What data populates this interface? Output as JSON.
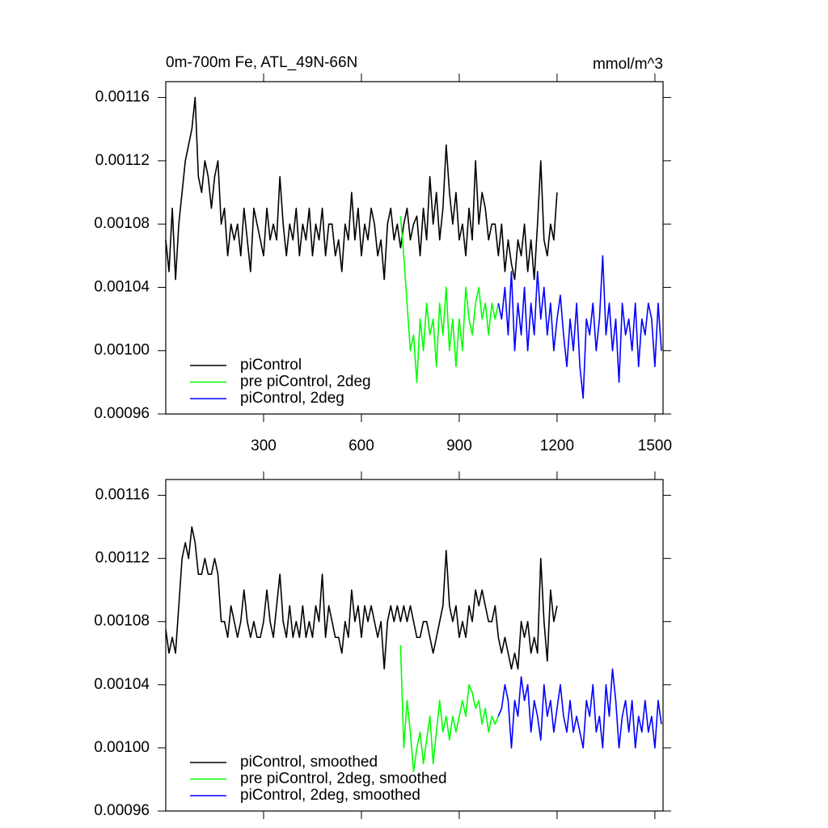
{
  "chart_data": [
    {
      "type": "line",
      "title": "0m-700m Fe, ATL_49N-66N",
      "units": "mmol/m^3",
      "xlim": [
        0,
        1525
      ],
      "xticks": [
        300,
        600,
        900,
        1200,
        1500
      ],
      "ylim": [
        0.00096,
        0.00117
      ],
      "yticks": [
        0.00096,
        {
          "value": 0.001,
          "label": "0.00100"
        },
        0.00104,
        0.00108,
        0.00112,
        0.00116
      ],
      "legend": "lower left",
      "series": [
        {
          "name": "piControl",
          "color": "#000000",
          "x": [
            0,
            10,
            20,
            30,
            40,
            50,
            60,
            70,
            80,
            90,
            100,
            110,
            120,
            130,
            140,
            150,
            160,
            170,
            180,
            190,
            200,
            210,
            220,
            230,
            240,
            250,
            260,
            270,
            280,
            290,
            300,
            310,
            320,
            330,
            340,
            350,
            360,
            370,
            380,
            390,
            400,
            410,
            420,
            430,
            440,
            450,
            460,
            470,
            480,
            490,
            500,
            510,
            520,
            530,
            540,
            550,
            560,
            570,
            580,
            590,
            600,
            610,
            620,
            630,
            640,
            650,
            660,
            670,
            680,
            690,
            700,
            710,
            720,
            730,
            740,
            750,
            760,
            770,
            780,
            790,
            800,
            810,
            820,
            830,
            840,
            850,
            860,
            870,
            880,
            890,
            900,
            910,
            920,
            930,
            940,
            950,
            960,
            970,
            980,
            990,
            1000,
            1010,
            1020,
            1030,
            1040,
            1050,
            1060,
            1070,
            1080,
            1090,
            1100,
            1110,
            1120,
            1130,
            1140,
            1150,
            1160,
            1170,
            1180,
            1190,
            1200
          ],
          "values": [
            0.00107,
            0.00105,
            0.00109,
            0.001045,
            0.00108,
            0.0011,
            0.00112,
            0.00113,
            0.00114,
            0.00116,
            0.00111,
            0.0011,
            0.00112,
            0.00111,
            0.00109,
            0.00111,
            0.00112,
            0.00108,
            0.00109,
            0.00106,
            0.00108,
            0.00107,
            0.00108,
            0.00106,
            0.00109,
            0.00107,
            0.00105,
            0.00109,
            0.00108,
            0.00107,
            0.00106,
            0.00109,
            0.00107,
            0.00108,
            0.00107,
            0.00111,
            0.00108,
            0.00106,
            0.00108,
            0.00107,
            0.00109,
            0.00106,
            0.00108,
            0.00107,
            0.00109,
            0.00106,
            0.00108,
            0.00107,
            0.00109,
            0.00106,
            0.00108,
            0.00108,
            0.00106,
            0.00107,
            0.00105,
            0.00108,
            0.00107,
            0.0011,
            0.00107,
            0.00109,
            0.00106,
            0.00108,
            0.00107,
            0.00109,
            0.00108,
            0.00106,
            0.00107,
            0.001045,
            0.00108,
            0.00109,
            0.00107,
            0.00108,
            0.001065,
            0.00108,
            0.00109,
            0.00107,
            0.00108,
            0.001085,
            0.00106,
            0.00109,
            0.00107,
            0.00111,
            0.00108,
            0.0011,
            0.00107,
            0.00109,
            0.00113,
            0.0011,
            0.00108,
            0.0011,
            0.00107,
            0.00108,
            0.00106,
            0.00109,
            0.00107,
            0.00112,
            0.00108,
            0.0011,
            0.00109,
            0.00107,
            0.00108,
            0.00108,
            0.00106,
            0.00108,
            0.00105,
            0.00107,
            0.001055,
            0.001045,
            0.00107,
            0.00106,
            0.00108,
            0.00105,
            0.00107,
            0.001045,
            0.00108,
            0.00112,
            0.00107,
            0.00106,
            0.00108,
            0.00107,
            0.0011
          ]
        },
        {
          "name": "pre piControl, 2deg",
          "color": "#00ff00",
          "x": [
            720,
            730,
            740,
            750,
            760,
            770,
            780,
            790,
            800,
            810,
            820,
            830,
            840,
            850,
            860,
            870,
            880,
            890,
            900,
            910,
            920,
            930,
            940,
            950,
            960,
            970,
            980,
            990,
            1000,
            1010,
            1020
          ],
          "values": [
            0.001085,
            0.00106,
            0.00103,
            0.001,
            0.00101,
            0.00098,
            0.00102,
            0.001,
            0.00103,
            0.00101,
            0.00102,
            0.00099,
            0.00103,
            0.00101,
            0.00104,
            0.001,
            0.00102,
            0.00099,
            0.00102,
            0.001,
            0.00104,
            0.00102,
            0.00101,
            0.00103,
            0.00104,
            0.00102,
            0.00103,
            0.00101,
            0.00103,
            0.00102,
            0.00103
          ]
        },
        {
          "name": "piControl, 2deg",
          "color": "#0000ff",
          "x": [
            1020,
            1030,
            1040,
            1050,
            1060,
            1070,
            1080,
            1090,
            1100,
            1110,
            1120,
            1130,
            1140,
            1150,
            1160,
            1170,
            1180,
            1190,
            1200,
            1210,
            1220,
            1230,
            1240,
            1250,
            1260,
            1270,
            1280,
            1290,
            1300,
            1310,
            1320,
            1330,
            1340,
            1350,
            1360,
            1370,
            1380,
            1390,
            1400,
            1410,
            1420,
            1430,
            1440,
            1450,
            1460,
            1470,
            1480,
            1490,
            1500,
            1510,
            1520
          ],
          "values": [
            0.00103,
            0.00102,
            0.00104,
            0.00101,
            0.00105,
            0.001,
            0.00103,
            0.00101,
            0.00104,
            0.001,
            0.00103,
            0.00101,
            0.00105,
            0.00102,
            0.00104,
            0.00101,
            0.00103,
            0.001,
            0.00102,
            0.001035,
            0.00101,
            0.00099,
            0.00102,
            0.001,
            0.00103,
            0.00099,
            0.00097,
            0.00102,
            0.00101,
            0.00103,
            0.001,
            0.00102,
            0.00106,
            0.00101,
            0.00103,
            0.001,
            0.00102,
            0.00098,
            0.00103,
            0.00101,
            0.00102,
            0.001,
            0.00103,
            0.00099,
            0.00102,
            0.00101,
            0.00103,
            0.00102,
            0.00099,
            0.00103,
            0.001
          ]
        }
      ]
    },
    {
      "type": "line",
      "xlim": [
        0,
        1525
      ],
      "xticks": [
        300,
        600,
        900,
        1200,
        1500
      ],
      "ylim": [
        0.00096,
        0.00117
      ],
      "yticks": [
        0.00096,
        {
          "value": 0.001,
          "label": "0.00100"
        },
        0.00104,
        0.00108,
        0.00112,
        0.00116
      ],
      "legend": "lower left",
      "series": [
        {
          "name": "piControl, smoothed",
          "color": "#000000",
          "x": [
            0,
            10,
            20,
            30,
            40,
            50,
            60,
            70,
            80,
            90,
            100,
            110,
            120,
            130,
            140,
            150,
            160,
            170,
            180,
            190,
            200,
            210,
            220,
            230,
            240,
            250,
            260,
            270,
            280,
            290,
            300,
            310,
            320,
            330,
            340,
            350,
            360,
            370,
            380,
            390,
            400,
            410,
            420,
            430,
            440,
            450,
            460,
            470,
            480,
            490,
            500,
            510,
            520,
            530,
            540,
            550,
            560,
            570,
            580,
            590,
            600,
            610,
            620,
            630,
            640,
            650,
            660,
            670,
            680,
            690,
            700,
            710,
            720,
            730,
            740,
            750,
            760,
            770,
            780,
            790,
            800,
            810,
            820,
            830,
            840,
            850,
            860,
            870,
            880,
            890,
            900,
            910,
            920,
            930,
            940,
            950,
            960,
            970,
            980,
            990,
            1000,
            1010,
            1020,
            1030,
            1040,
            1050,
            1060,
            1070,
            1080,
            1090,
            1100,
            1110,
            1120,
            1130,
            1140,
            1150,
            1160,
            1170,
            1180,
            1190,
            1200
          ],
          "values": [
            0.001075,
            0.00106,
            0.00107,
            0.00106,
            0.00109,
            0.00112,
            0.00113,
            0.00112,
            0.00114,
            0.00113,
            0.00111,
            0.00111,
            0.00112,
            0.00111,
            0.00111,
            0.00112,
            0.00111,
            0.00108,
            0.00108,
            0.00107,
            0.00109,
            0.00108,
            0.00107,
            0.00108,
            0.0011,
            0.00108,
            0.00107,
            0.00108,
            0.00107,
            0.00107,
            0.00108,
            0.0011,
            0.00108,
            0.00107,
            0.00109,
            0.00111,
            0.00108,
            0.00107,
            0.00109,
            0.00107,
            0.00108,
            0.00107,
            0.00109,
            0.00107,
            0.00108,
            0.00107,
            0.00109,
            0.00108,
            0.00111,
            0.00107,
            0.00109,
            0.00108,
            0.00107,
            0.00107,
            0.00106,
            0.00108,
            0.00107,
            0.0011,
            0.00108,
            0.00109,
            0.00107,
            0.00109,
            0.00108,
            0.00109,
            0.00108,
            0.00107,
            0.00108,
            0.00105,
            0.00108,
            0.00109,
            0.00108,
            0.00109,
            0.00108,
            0.00109,
            0.00108,
            0.00109,
            0.00108,
            0.00107,
            0.00107,
            0.00108,
            0.00108,
            0.00107,
            0.00106,
            0.00107,
            0.00108,
            0.00109,
            0.001125,
            0.00109,
            0.00108,
            0.00109,
            0.00107,
            0.00108,
            0.00107,
            0.00109,
            0.00108,
            0.0011,
            0.00109,
            0.0011,
            0.00109,
            0.00108,
            0.00108,
            0.00109,
            0.00107,
            0.00106,
            0.00107,
            0.00106,
            0.00105,
            0.00106,
            0.00105,
            0.00108,
            0.00107,
            0.00108,
            0.00106,
            0.00107,
            0.00106,
            0.00112,
            0.00108,
            0.001055,
            0.0011,
            0.00108,
            0.00109
          ]
        },
        {
          "name": "pre piControl, 2deg, smoothed",
          "color": "#00ff00",
          "x": [
            720,
            730,
            740,
            750,
            760,
            770,
            780,
            790,
            800,
            810,
            820,
            830,
            840,
            850,
            860,
            870,
            880,
            890,
            900,
            910,
            920,
            930,
            940,
            950,
            960,
            970,
            980,
            990,
            1000,
            1010,
            1020
          ],
          "values": [
            0.001065,
            0.001,
            0.00103,
            0.00101,
            0.000985,
            0.001,
            0.00101,
            0.00099,
            0.001005,
            0.00102,
            0.00099,
            0.00101,
            0.00103,
            0.00101,
            0.00102,
            0.001005,
            0.00102,
            0.00101,
            0.00102,
            0.00103,
            0.00102,
            0.00104,
            0.001035,
            0.001025,
            0.00103,
            0.001015,
            0.001025,
            0.00101,
            0.00102,
            0.001015,
            0.00102
          ]
        },
        {
          "name": "piControl, 2deg, smoothed",
          "color": "#0000ff",
          "x": [
            1020,
            1030,
            1040,
            1050,
            1060,
            1070,
            1080,
            1090,
            1100,
            1110,
            1120,
            1130,
            1140,
            1150,
            1160,
            1170,
            1180,
            1190,
            1200,
            1210,
            1220,
            1230,
            1240,
            1250,
            1260,
            1270,
            1280,
            1290,
            1300,
            1310,
            1320,
            1330,
            1340,
            1350,
            1360,
            1370,
            1380,
            1390,
            1400,
            1410,
            1420,
            1430,
            1440,
            1450,
            1460,
            1470,
            1480,
            1490,
            1500,
            1510,
            1520
          ],
          "values": [
            0.00102,
            0.001025,
            0.00104,
            0.00103,
            0.001,
            0.00103,
            0.00102,
            0.001045,
            0.00103,
            0.00104,
            0.00101,
            0.00103,
            0.00102,
            0.001005,
            0.00104,
            0.00102,
            0.00103,
            0.00101,
            0.001025,
            0.00104,
            0.00102,
            0.00101,
            0.00103,
            0.00101,
            0.00102,
            0.00101,
            0.001,
            0.00103,
            0.00102,
            0.00104,
            0.00101,
            0.00102,
            0.001,
            0.00104,
            0.00102,
            0.00105,
            0.00103,
            0.001,
            0.00102,
            0.00103,
            0.00101,
            0.00103,
            0.001,
            0.00102,
            0.00101,
            0.00103,
            0.00101,
            0.00102,
            0.001,
            0.00103,
            0.001015
          ]
        }
      ]
    }
  ]
}
